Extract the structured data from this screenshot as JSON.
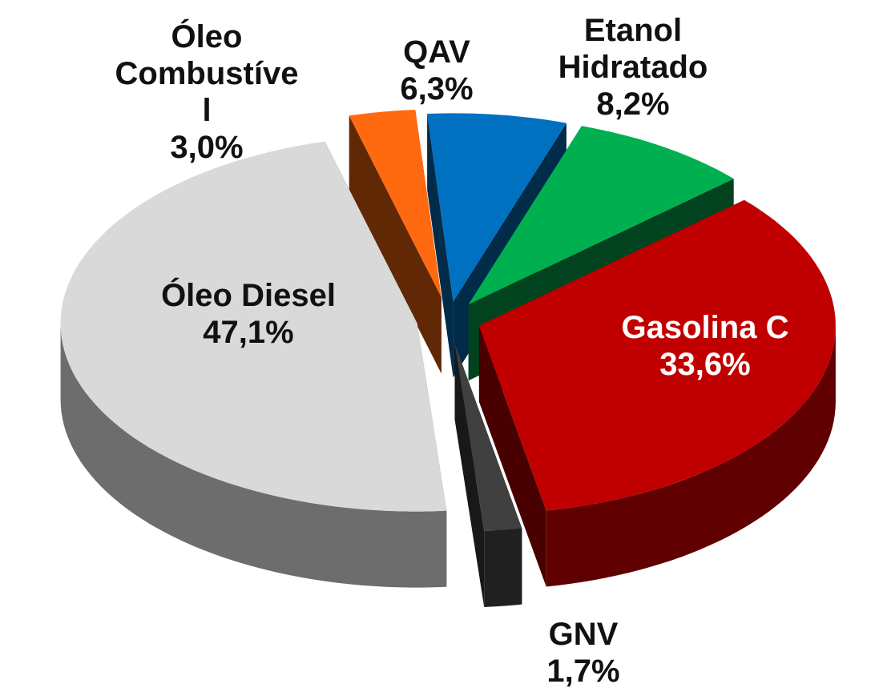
{
  "chart_data": {
    "type": "pie3d",
    "categories": [
      "Óleo Combustível",
      "QAV",
      "Etanol Hidratado",
      "Gasolina C",
      "GNV",
      "Óleo Diesel"
    ],
    "values": [
      3.0,
      6.3,
      8.2,
      33.6,
      1.7,
      47.1
    ],
    "value_labels": [
      "3,0%",
      "6,3%",
      "8,2%",
      "33,6%",
      "1,7%",
      "47,1%"
    ],
    "colors": [
      "#ff6a10",
      "#0070c0",
      "#00b050",
      "#c00000",
      "#404040",
      "#d9d9d9"
    ]
  }
}
